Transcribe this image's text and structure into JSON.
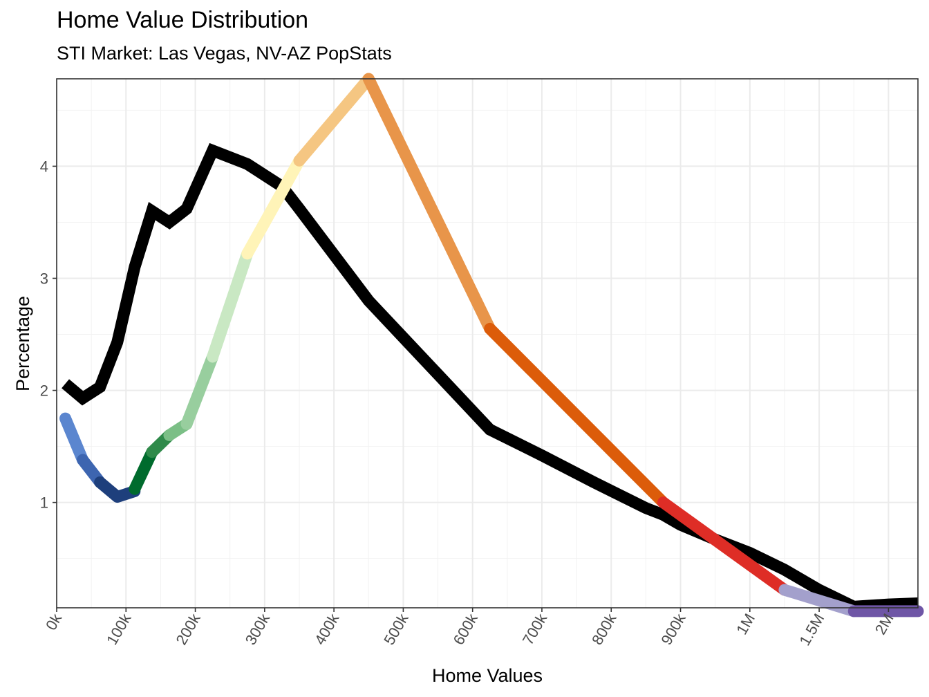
{
  "chart_data": {
    "type": "line",
    "title": "Home Value Distribution",
    "subtitle": "STI Market: Las Vegas, NV-AZ PopStats",
    "xlabel": "Home Values",
    "ylabel": "Percentage",
    "x_tick_labels": [
      "0k",
      "100k",
      "200k",
      "300k",
      "400k",
      "500k",
      "600k",
      "700k",
      "800k",
      "900k",
      "1M",
      "1.5M",
      "2M"
    ],
    "x_tick_index": [
      0,
      4,
      8,
      12,
      16,
      20,
      24,
      28,
      32,
      36,
      40,
      44,
      48
    ],
    "x_index_range": [
      0,
      49.7
    ],
    "y_ticks": [
      1,
      2,
      3,
      4
    ],
    "ylim": [
      0.06,
      4.78
    ],
    "grid": true,
    "series": [
      {
        "name": "PopStats",
        "color": "#000000",
        "points": [
          [
            0.5,
            2.06
          ],
          [
            1.5,
            1.93
          ],
          [
            2.5,
            2.03
          ],
          [
            3.5,
            2.43
          ],
          [
            4.5,
            3.1
          ],
          [
            5.5,
            3.6
          ],
          [
            6.5,
            3.5
          ],
          [
            7.5,
            3.62
          ],
          [
            9,
            4.14
          ],
          [
            11,
            4.02
          ],
          [
            13,
            3.82
          ],
          [
            14,
            3.62
          ],
          [
            18,
            2.8
          ],
          [
            25,
            1.65
          ],
          [
            28,
            1.42
          ],
          [
            31,
            1.18
          ],
          [
            34,
            0.95
          ],
          [
            35,
            0.89
          ],
          [
            36,
            0.8
          ],
          [
            38,
            0.67
          ],
          [
            40,
            0.55
          ],
          [
            42,
            0.4
          ],
          [
            44,
            0.22
          ],
          [
            46,
            0.07
          ],
          [
            48,
            0.09
          ],
          [
            49.7,
            0.1
          ]
        ]
      },
      {
        "name": "STI Market",
        "segments": [
          {
            "color": "#5b86cf",
            "points": [
              [
                0.5,
                1.75
              ],
              [
                1.5,
                1.38
              ]
            ]
          },
          {
            "color": "#3d65b0",
            "points": [
              [
                1.5,
                1.38
              ],
              [
                2.5,
                1.18
              ]
            ]
          },
          {
            "color": "#1e3f7c",
            "points": [
              [
                2.5,
                1.18
              ],
              [
                3.5,
                1.05
              ],
              [
                4.5,
                1.1
              ]
            ]
          },
          {
            "color": "#006b2d",
            "points": [
              [
                4.5,
                1.12
              ],
              [
                5.5,
                1.45
              ]
            ]
          },
          {
            "color": "#2f8a4a",
            "points": [
              [
                5.5,
                1.45
              ],
              [
                6.5,
                1.6
              ]
            ]
          },
          {
            "color": "#7bbf86",
            "points": [
              [
                6.5,
                1.6
              ],
              [
                7.5,
                1.7
              ]
            ]
          },
          {
            "color": "#98ce9e",
            "points": [
              [
                7.5,
                1.7
              ],
              [
                9,
                2.3
              ]
            ]
          },
          {
            "color": "#c9e8c3",
            "points": [
              [
                9,
                2.3
              ],
              [
                11,
                3.22
              ]
            ]
          },
          {
            "color": "#fff4b8",
            "points": [
              [
                11,
                3.22
              ],
              [
                14,
                4.05
              ]
            ]
          },
          {
            "color": "#f5c682",
            "points": [
              [
                14,
                4.05
              ],
              [
                18,
                4.78
              ]
            ]
          },
          {
            "color": "#e8954a",
            "points": [
              [
                18,
                4.78
              ],
              [
                25,
                2.55
              ]
            ]
          },
          {
            "color": "#dc5c0a",
            "points": [
              [
                25,
                2.55
              ],
              [
                35,
                1.0
              ]
            ]
          },
          {
            "color": "#de2d26",
            "points": [
              [
                35,
                1.0
              ],
              [
                42,
                0.22
              ]
            ]
          },
          {
            "color": "#a3a0cc",
            "points": [
              [
                42,
                0.22
              ],
              [
                46,
                0.03
              ]
            ]
          },
          {
            "color": "#6f56a6",
            "points": [
              [
                46,
                0.03
              ],
              [
                49.7,
                0.03
              ]
            ]
          }
        ]
      }
    ]
  }
}
